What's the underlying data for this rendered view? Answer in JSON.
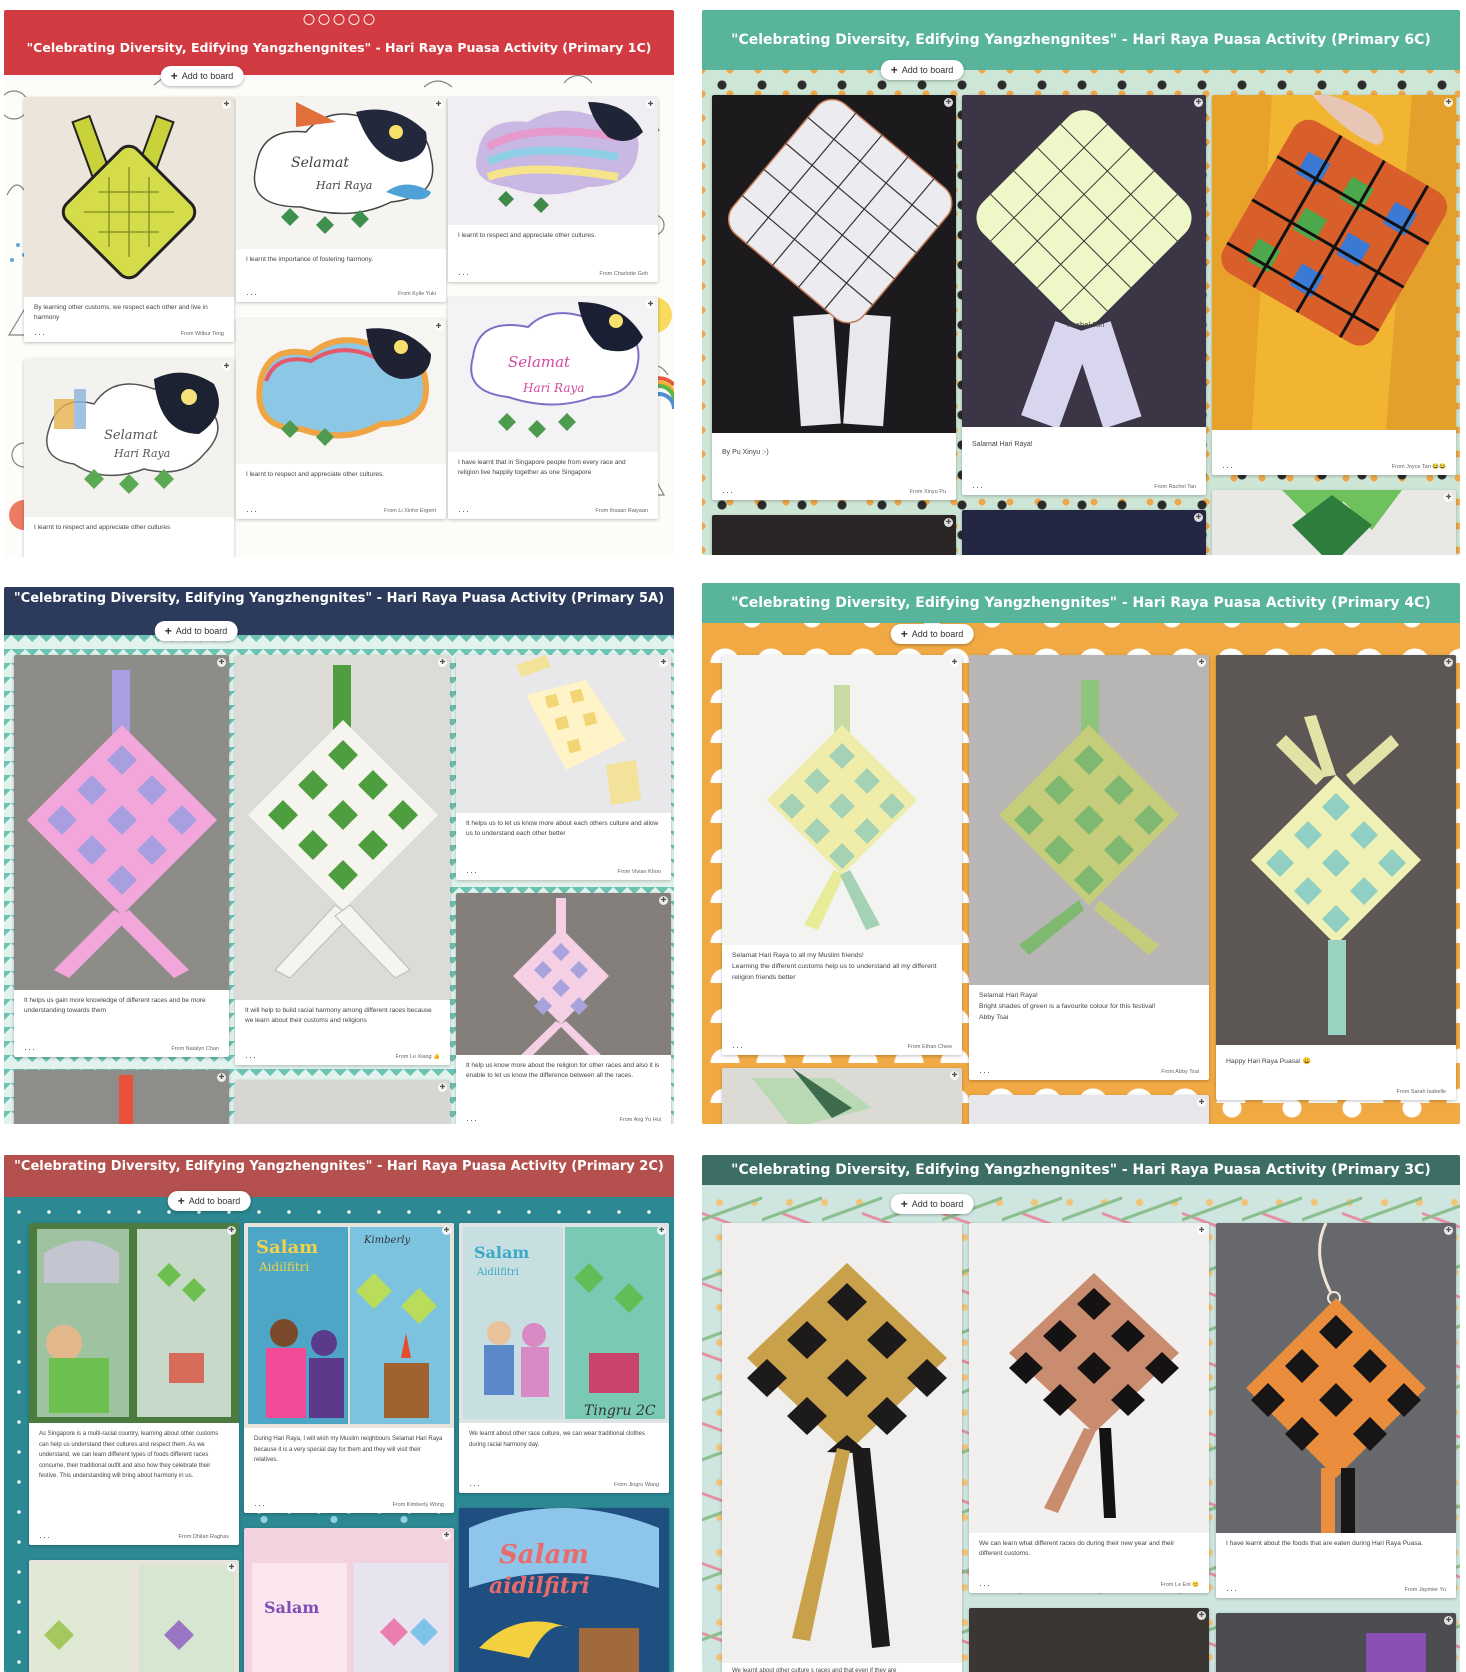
{
  "add_label": "Add to board",
  "colors": {
    "red": "#d33b42",
    "teal": "#58b59c",
    "navy": "#2c3a5c",
    "salmon": "#b4504d",
    "slate": "#3d6e66",
    "paper": "#f4f1ec"
  },
  "boards": [
    {
      "title": "\"Celebrating Diversity, Edifying Yangzhengnites\" - Hari Raya Puasa Activity (Primary 1C)",
      "cards": [
        {
          "text": "By learning other customs, we respect each other and live in harmony",
          "from": "From Wilbur Teng",
          "art": "ketupat-yellow-drawing"
        },
        {
          "text": "I learnt the importance of fostering harmony.",
          "from": "From Kylie Yuki",
          "art": "selamat-hari-raya-cloud"
        },
        {
          "text": "I learnt to respect and appreciate other cultures.",
          "from": "From Charlotte Goh",
          "art": "selamat-rainbow-mosque"
        },
        {
          "text": "I learnt to respect and appreciate other cultures.",
          "from": "From Li Xinhe Ergent",
          "art": "rainbow-cloud-night"
        },
        {
          "text": "I have learnt that in Singapore people from every race and religion live happily together as one Singapore",
          "from": "From Ihsaan Raiyaan",
          "art": "selamat-night-colorful"
        },
        {
          "text": "I learnt to respect and appreciate other cultures",
          "from": "",
          "art": "selamat-cloud-night"
        }
      ]
    },
    {
      "title": "\"Celebrating Diversity, Edifying Yangzhengnites\" - Hari Raya Puasa Activity (Primary 6C)",
      "cards": [
        {
          "text": "By Pu Xinyu :-)",
          "from": "From Xinyu Pu",
          "art": "ketupat-grid-white"
        },
        {
          "text": "Salamat Hari Raya!",
          "from": "From Rachel Tan",
          "art": "ketupat-grid-lime"
        },
        {
          "text": "",
          "from": "From Joyce Tan 😂😂",
          "art": "ketupat-colorful-hand"
        }
      ]
    },
    {
      "title": "\"Celebrating Diversity, Edifying Yangzhengnites\" - Hari Raya Puasa Activity (Primary 5A)",
      "cards": [
        {
          "text": "It helps us gain more knowledge of different races and be more understanding towards them",
          "from": "From Natalyn Chan",
          "art": "woven-pink-purple"
        },
        {
          "text": "It will help to build racial harmony among different races because we learn about their customs and religions",
          "from": "From Le Xiang 👍",
          "art": "woven-green-white"
        },
        {
          "text": "It helps us to let us know more about each others culture and allow us to understand each other better",
          "from": "From Vivian Khoo",
          "art": "woven-yellow"
        },
        {
          "text": "It help us know more about the religion for other races and also it is enable to let us know the difference between all the races.",
          "from": "From Ang Yu Hui",
          "art": "woven-pink-floor"
        }
      ]
    },
    {
      "title": "\"Celebrating Diversity, Edifying Yangzhengnites\" - Hari Raya Puasa Activity (Primary 4C)",
      "cards": [
        {
          "text": "Selamat Hari Raya to all my Muslim friends!\nLearning the different customs help us to understand all my different religion friends better",
          "from": "From Ethan Chew",
          "art": "woven-lime-yellow"
        },
        {
          "text": "Selamat Hari Raya!\nBright shades of green is a favourite colour for this festival!\nAbby Tsai",
          "from": "From Abby Tsai",
          "art": "woven-green-shades"
        },
        {
          "text": "Happy Hari Raya Puasa! 😀",
          "from": "From Sarah Isabelle",
          "art": "woven-teal-yellow"
        }
      ]
    },
    {
      "title": "\"Celebrating Diversity, Edifying Yangzhengnites\" - Hari Raya Puasa Activity (Primary 2C)",
      "cards": [
        {
          "text": "As Singapore is a multi-racial country, learning about other customs can help us understand their cultures and respect them. As we understand, we can learn different types of foods different races consume, their traditional outfit and also how they celebrate their festive. This understanding will bring about harmony in us.",
          "from": "From Dhilan Raghav",
          "art": "greeting-card-green"
        },
        {
          "text": "During Hari Raya, I will wish my Muslim neighbours Selamat Hari Raya because it is a very special day for them and they will visit their relatives.",
          "from": "From Kimberly Wong",
          "art": "greeting-card-kimberly"
        },
        {
          "text": "We learnt about other race culture, we can wear traditional clothes during racial harmony day.",
          "from": "From Jingru Wang",
          "art": "greeting-card-tingru"
        }
      ]
    },
    {
      "title": "\"Celebrating Diversity, Edifying Yangzhengnites\" - Hari Raya Puasa Activity (Primary 3C)",
      "cards": [
        {
          "text": "",
          "from": "",
          "art": "glitter-gold-black"
        },
        {
          "text": "We can learn what different races do during their new year and their different customs.",
          "from": "From Le Enl 😊",
          "art": "glitter-copper-black"
        },
        {
          "text": "I have learnt about the foods that are eaten during Hari Raya Puasa.",
          "from": "From Jaymier Yu",
          "art": "glitter-orange-black"
        },
        {
          "text": "We learnt about other culture s races and that even if they are",
          "from": "",
          "art": "glitter-bottom"
        }
      ]
    }
  ]
}
